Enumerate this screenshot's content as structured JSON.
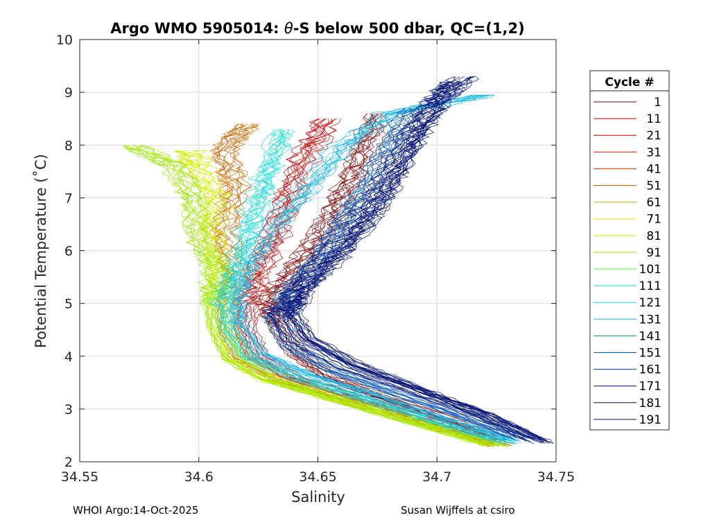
{
  "chart_data": {
    "type": "line",
    "title_prefix": "Argo WMO 5905014: ",
    "title_theta": "θ",
    "title_suffix": "-S below 500 dbar,  QC=(1,2)",
    "xlabel": "Salinity",
    "ylabel": "Potential Temperature (˚C)",
    "xlim": [
      34.55,
      34.75
    ],
    "ylim": [
      2,
      10
    ],
    "grid": true,
    "x_ticks": [
      34.55,
      34.6,
      34.65,
      34.7,
      34.75
    ],
    "x_tick_labels": [
      "34.55",
      "34.6",
      "34.65",
      "34.7",
      "34.75"
    ],
    "y_ticks": [
      2,
      3,
      4,
      5,
      6,
      7,
      8,
      9,
      10
    ],
    "y_tick_labels": [
      "2",
      "3",
      "4",
      "5",
      "6",
      "7",
      "8",
      "9",
      "10"
    ],
    "legend": {
      "title": "Cycle #",
      "placement": "outside-right",
      "entries": [
        {
          "label": "1",
          "color": "#800000"
        },
        {
          "label": "11",
          "color": "#a60000"
        },
        {
          "label": "21",
          "color": "#cc0000"
        },
        {
          "label": "31",
          "color": "#e60f00"
        },
        {
          "label": "41",
          "color": "#ff2a00"
        },
        {
          "label": "51",
          "color": "#cc6600"
        },
        {
          "label": "61",
          "color": "#d9a300"
        },
        {
          "label": "71",
          "color": "#f2e000"
        },
        {
          "label": "81",
          "color": "#d2f000"
        },
        {
          "label": "91",
          "color": "#9be600"
        },
        {
          "label": "101",
          "color": "#4cf04c"
        },
        {
          "label": "111",
          "color": "#1ae6a0"
        },
        {
          "label": "121",
          "color": "#18e0d8"
        },
        {
          "label": "131",
          "color": "#18b8e8"
        },
        {
          "label": "141",
          "color": "#0f80b0"
        },
        {
          "label": "151",
          "color": "#0a58b8"
        },
        {
          "label": "161",
          "color": "#0a30b0"
        },
        {
          "label": "171",
          "color": "#00107a"
        },
        {
          "label": "181",
          "color": "#00105c"
        },
        {
          "label": "191",
          "color": "#001070"
        }
      ]
    },
    "representative_profiles": [
      {
        "cycle": 1,
        "color": "#800000",
        "points": [
          [
            34.728,
            2.4
          ],
          [
            34.705,
            2.8
          ],
          [
            34.672,
            3.3
          ],
          [
            34.655,
            3.6
          ],
          [
            34.642,
            4.0
          ],
          [
            34.633,
            4.6
          ],
          [
            34.63,
            5.0
          ],
          [
            34.64,
            5.6
          ],
          [
            34.652,
            6.3
          ],
          [
            34.66,
            7.0
          ],
          [
            34.668,
            7.8
          ],
          [
            34.675,
            8.6
          ]
        ]
      },
      {
        "cycle": 21,
        "color": "#cc0000",
        "points": [
          [
            34.727,
            2.35
          ],
          [
            34.7,
            2.75
          ],
          [
            34.665,
            3.25
          ],
          [
            34.64,
            3.6
          ],
          [
            34.625,
            4.0
          ],
          [
            34.62,
            4.5
          ],
          [
            34.622,
            5.0
          ],
          [
            34.625,
            5.5
          ],
          [
            34.632,
            6.2
          ],
          [
            34.638,
            7.0
          ],
          [
            34.645,
            7.8
          ],
          [
            34.655,
            8.5
          ]
        ]
      },
      {
        "cycle": 51,
        "color": "#cc6600",
        "points": [
          [
            34.726,
            2.3
          ],
          [
            34.697,
            2.7
          ],
          [
            34.66,
            3.2
          ],
          [
            34.635,
            3.55
          ],
          [
            34.618,
            3.95
          ],
          [
            34.612,
            4.5
          ],
          [
            34.612,
            5.0
          ],
          [
            34.615,
            5.6
          ],
          [
            34.61,
            6.4
          ],
          [
            34.615,
            7.2
          ],
          [
            34.61,
            7.9
          ],
          [
            34.62,
            8.4
          ]
        ]
      },
      {
        "cycle": 81,
        "color": "#d2f000",
        "points": [
          [
            34.725,
            2.3
          ],
          [
            34.695,
            2.7
          ],
          [
            34.658,
            3.2
          ],
          [
            34.63,
            3.55
          ],
          [
            34.615,
            3.95
          ],
          [
            34.61,
            4.5
          ],
          [
            34.608,
            5.0
          ],
          [
            34.61,
            5.6
          ],
          [
            34.605,
            6.4
          ],
          [
            34.608,
            7.0
          ],
          [
            34.6,
            7.6
          ],
          [
            34.595,
            7.9
          ]
        ]
      },
      {
        "cycle": 91,
        "color": "#9be600",
        "points": [
          [
            34.726,
            2.3
          ],
          [
            34.694,
            2.7
          ],
          [
            34.656,
            3.2
          ],
          [
            34.63,
            3.55
          ],
          [
            34.614,
            3.95
          ],
          [
            34.608,
            4.5
          ],
          [
            34.606,
            5.0
          ],
          [
            34.607,
            5.6
          ],
          [
            34.6,
            6.3
          ],
          [
            34.598,
            7.0
          ],
          [
            34.59,
            7.6
          ],
          [
            34.572,
            8.0
          ]
        ]
      },
      {
        "cycle": 121,
        "color": "#18e0d8",
        "points": [
          [
            34.73,
            2.35
          ],
          [
            34.7,
            2.75
          ],
          [
            34.665,
            3.25
          ],
          [
            34.64,
            3.6
          ],
          [
            34.62,
            4.0
          ],
          [
            34.612,
            4.5
          ],
          [
            34.61,
            5.0
          ],
          [
            34.615,
            5.6
          ],
          [
            34.62,
            6.3
          ],
          [
            34.625,
            7.0
          ],
          [
            34.63,
            7.6
          ],
          [
            34.635,
            8.3
          ]
        ]
      },
      {
        "cycle": 131,
        "color": "#18b8e8",
        "points": [
          [
            34.731,
            2.4
          ],
          [
            34.703,
            2.8
          ],
          [
            34.67,
            3.3
          ],
          [
            34.645,
            3.65
          ],
          [
            34.625,
            4.05
          ],
          [
            34.616,
            4.6
          ],
          [
            34.615,
            5.1
          ],
          [
            34.62,
            5.7
          ],
          [
            34.63,
            6.4
          ],
          [
            34.645,
            7.2
          ],
          [
            34.66,
            8.0
          ],
          [
            34.68,
            8.6
          ],
          [
            34.72,
            8.95
          ]
        ]
      },
      {
        "cycle": 151,
        "color": "#0a58b8",
        "points": [
          [
            34.735,
            2.45
          ],
          [
            34.712,
            2.85
          ],
          [
            34.68,
            3.35
          ],
          [
            34.655,
            3.75
          ],
          [
            34.638,
            4.2
          ],
          [
            34.632,
            4.7
          ],
          [
            34.638,
            5.2
          ],
          [
            34.65,
            5.8
          ],
          [
            34.66,
            6.5
          ],
          [
            34.67,
            7.2
          ],
          [
            34.68,
            8.0
          ],
          [
            34.69,
            8.7
          ]
        ]
      },
      {
        "cycle": 171,
        "color": "#00107a",
        "points": [
          [
            34.742,
            2.4
          ],
          [
            34.72,
            2.9
          ],
          [
            34.688,
            3.4
          ],
          [
            34.662,
            3.8
          ],
          [
            34.642,
            4.3
          ],
          [
            34.635,
            4.8
          ],
          [
            34.642,
            5.3
          ],
          [
            34.655,
            5.9
          ],
          [
            34.668,
            6.6
          ],
          [
            34.678,
            7.3
          ],
          [
            34.688,
            8.1
          ],
          [
            34.7,
            8.8
          ],
          [
            34.712,
            9.3
          ]
        ]
      },
      {
        "cycle": 191,
        "color": "#001070",
        "points": [
          [
            34.745,
            2.35
          ],
          [
            34.72,
            2.85
          ],
          [
            34.69,
            3.4
          ],
          [
            34.665,
            3.85
          ],
          [
            34.645,
            4.35
          ],
          [
            34.638,
            4.85
          ],
          [
            34.645,
            5.35
          ],
          [
            34.66,
            6.0
          ],
          [
            34.672,
            6.7
          ],
          [
            34.682,
            7.4
          ],
          [
            34.69,
            8.1
          ],
          [
            34.698,
            8.8
          ],
          [
            34.706,
            9.2
          ]
        ]
      }
    ]
  },
  "footer": {
    "left": "WHOI Argo:14-Oct-2025",
    "right": "Susan Wijffels at csiro"
  }
}
